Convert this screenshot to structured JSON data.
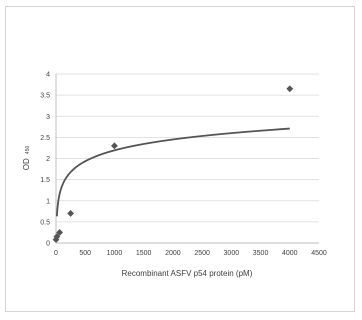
{
  "chart_data": {
    "type": "scatter",
    "title": "",
    "xlabel": "Recombinant ASFV p54 protein (pM)",
    "ylabel": "OD",
    "ylabel_subscript": "450",
    "xlim": [
      0,
      4500
    ],
    "ylim": [
      0,
      4
    ],
    "x_ticks": [
      "0",
      "500",
      "1000",
      "1500",
      "2000",
      "2500",
      "3000",
      "3500",
      "4000",
      "4500"
    ],
    "y_ticks": [
      "0",
      "0.5",
      "1",
      "1.5",
      "2",
      "2.5",
      "3",
      "3.5",
      "4"
    ],
    "grid": true,
    "legend": "none",
    "colors": {
      "marker": "#555555",
      "trendline": "#555555",
      "gridline": "#d9d9d9",
      "axis": "#bfbfbf"
    },
    "series": [
      {
        "type": "scatter",
        "marker": "diamond",
        "x": [
          0,
          15,
          62,
          250,
          1000,
          4000
        ],
        "y": [
          0.08,
          0.15,
          0.25,
          0.7,
          2.3,
          3.65
        ]
      },
      {
        "type": "trendline",
        "fit": "logarithmic",
        "x_range": [
          15,
          4000
        ],
        "coefficients": {
          "a": 0.3716,
          "b": -0.374
        }
      }
    ]
  }
}
